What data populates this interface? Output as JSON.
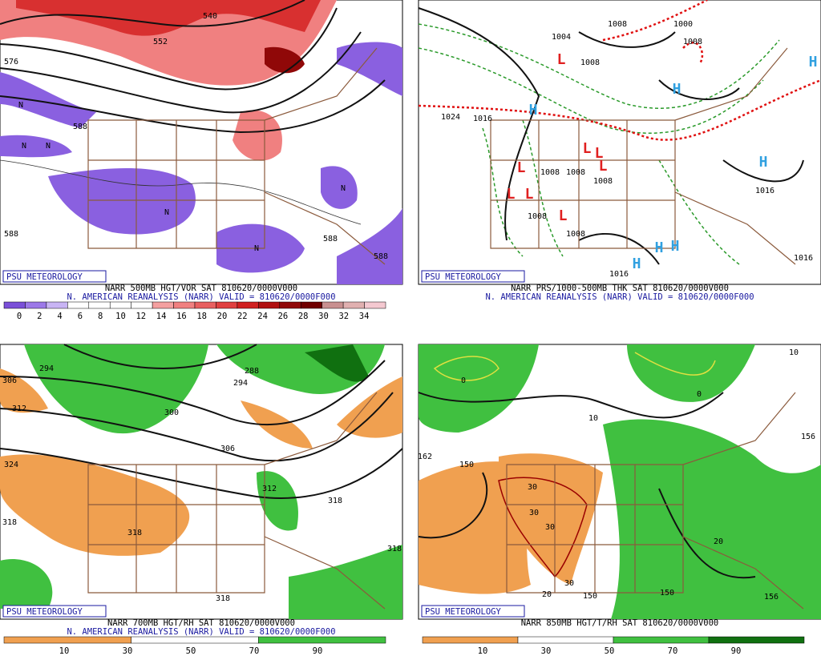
{
  "panels": [
    {
      "label": "PSU METEOROLOGY",
      "line1": "NARR 500MB HGT/VOR SAT 810620/0000V000",
      "line2": "N. AMERICAN REANALYSIS (NARR) VALID = 810620/0000F000",
      "scale": [
        0,
        2,
        4,
        6,
        8,
        10,
        12,
        14,
        16,
        18,
        20,
        22,
        24,
        26,
        28,
        30,
        32,
        34
      ],
      "scale_colors": [
        "#7a4fd8",
        "#9c78e8",
        "#c8b4f4",
        "#ffffff",
        "#ffffff",
        "#ffffff",
        "#ffffff",
        "#f4a0a0",
        "#f08080",
        "#e86060",
        "#e04040",
        "#d02020",
        "#b01010",
        "#900808",
        "#700000",
        "#c89090",
        "#e0b0b0",
        "#f4c8d0"
      ],
      "contours": [
        "540",
        "552",
        "576",
        "588",
        "588",
        "588",
        "588",
        "N",
        "N",
        "N",
        "N",
        "N",
        "N"
      ]
    },
    {
      "label": "PSU METEOROLOGY",
      "line1": "NARR PRS/1000-500MB THK SAT 810620/0000V000",
      "line2": "N. AMERICAN REANALYSIS (NARR) VALID = 810620/0000F000",
      "contours": [
        "1008",
        "1000",
        "1004",
        "1008",
        "1008",
        "1024",
        "1016",
        "1008",
        "1008",
        "1008",
        "1008",
        "1008",
        "1016",
        "1016",
        "1016",
        "H",
        "H",
        "H",
        "H",
        "H",
        "H",
        "H",
        "L",
        "L",
        "L",
        "L",
        "L",
        "L",
        "L",
        "L"
      ]
    },
    {
      "label": "PSU METEOROLOGY",
      "line1": "NARR 700MB HGT/RH SAT 810620/0000V000",
      "line2": "N. AMERICAN REANALYSIS (NARR) VALID = 810620/0000F000",
      "scale": [
        10,
        30,
        50,
        70,
        90
      ],
      "scale_colors": [
        "#f0a050",
        "#ffffff",
        "#40c040"
      ],
      "contours": [
        "294",
        "288",
        "294",
        "300",
        "306",
        "312",
        "306",
        "312",
        "318",
        "324",
        "318",
        "318",
        "318",
        "318"
      ]
    },
    {
      "label": "PSU METEOROLOGY",
      "line1": "NARR 850MB HGT/T/RH SAT 810620/0000V000",
      "scale": [
        10,
        30,
        50,
        70,
        90
      ],
      "scale_colors": [
        "#f0a050",
        "#ffffff",
        "#40c040",
        "#107010"
      ],
      "contours": [
        "150",
        "162",
        "156",
        "10",
        "10",
        "0",
        "0",
        "30",
        "30",
        "30",
        "30",
        "20",
        "20",
        "150",
        "150",
        "156"
      ]
    }
  ]
}
